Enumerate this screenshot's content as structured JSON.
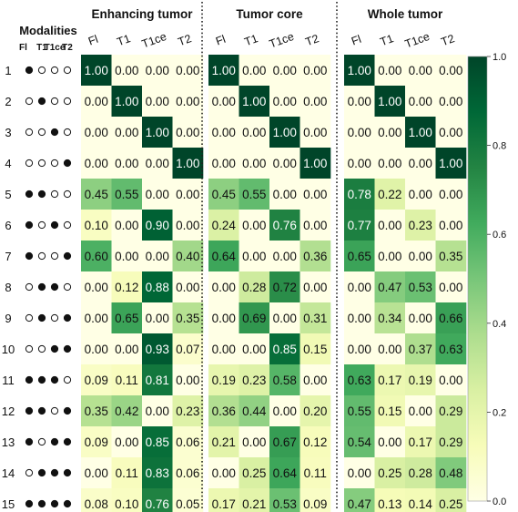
{
  "chart_data": {
    "type": "heatmap",
    "rows_label": "Modalities",
    "modality_labels": [
      "Fl",
      "T1",
      "T1ce",
      "T2"
    ],
    "row_ids": [
      "1",
      "2",
      "3",
      "4",
      "5",
      "6",
      "7",
      "8",
      "9",
      "10",
      "11",
      "12",
      "13",
      "14",
      "15"
    ],
    "modality_masks": [
      [
        1,
        0,
        0,
        0
      ],
      [
        0,
        1,
        0,
        0
      ],
      [
        0,
        0,
        1,
        0
      ],
      [
        0,
        0,
        0,
        1
      ],
      [
        1,
        1,
        0,
        0
      ],
      [
        1,
        0,
        1,
        0
      ],
      [
        1,
        0,
        0,
        1
      ],
      [
        0,
        1,
        1,
        0
      ],
      [
        0,
        1,
        0,
        1
      ],
      [
        0,
        0,
        1,
        1
      ],
      [
        1,
        1,
        1,
        0
      ],
      [
        1,
        1,
        0,
        1
      ],
      [
        1,
        0,
        1,
        1
      ],
      [
        0,
        1,
        1,
        1
      ],
      [
        1,
        1,
        1,
        1
      ]
    ],
    "panels": [
      {
        "title": "Enhancing tumor",
        "columns": [
          "Fl",
          "T1",
          "T1ce",
          "T2"
        ],
        "values": [
          [
            1.0,
            0.0,
            0.0,
            0.0
          ],
          [
            0.0,
            1.0,
            0.0,
            0.0
          ],
          [
            0.0,
            0.0,
            1.0,
            0.0
          ],
          [
            0.0,
            0.0,
            0.0,
            1.0
          ],
          [
            0.45,
            0.55,
            0.0,
            0.0
          ],
          [
            0.1,
            0.0,
            0.9,
            0.0
          ],
          [
            0.6,
            0.0,
            0.0,
            0.4
          ],
          [
            0.0,
            0.12,
            0.88,
            0.0
          ],
          [
            0.0,
            0.65,
            0.0,
            0.35
          ],
          [
            0.0,
            0.0,
            0.93,
            0.07
          ],
          [
            0.09,
            0.11,
            0.81,
            0.0
          ],
          [
            0.35,
            0.42,
            0.0,
            0.23
          ],
          [
            0.09,
            0.0,
            0.85,
            0.06
          ],
          [
            0.0,
            0.11,
            0.83,
            0.06
          ],
          [
            0.08,
            0.1,
            0.76,
            0.05
          ]
        ]
      },
      {
        "title": "Tumor core",
        "columns": [
          "Fl",
          "T1",
          "T1ce",
          "T2"
        ],
        "values": [
          [
            1.0,
            0.0,
            0.0,
            0.0
          ],
          [
            0.0,
            1.0,
            0.0,
            0.0
          ],
          [
            0.0,
            0.0,
            1.0,
            0.0
          ],
          [
            0.0,
            0.0,
            0.0,
            1.0
          ],
          [
            0.45,
            0.55,
            0.0,
            0.0
          ],
          [
            0.24,
            0.0,
            0.76,
            0.0
          ],
          [
            0.64,
            0.0,
            0.0,
            0.36
          ],
          [
            0.0,
            0.28,
            0.72,
            0.0
          ],
          [
            0.0,
            0.69,
            0.0,
            0.31
          ],
          [
            0.0,
            0.0,
            0.85,
            0.15
          ],
          [
            0.19,
            0.23,
            0.58,
            0.0
          ],
          [
            0.36,
            0.44,
            0.0,
            0.2
          ],
          [
            0.21,
            0.0,
            0.67,
            0.12
          ],
          [
            0.0,
            0.25,
            0.64,
            0.11
          ],
          [
            0.17,
            0.21,
            0.53,
            0.09
          ]
        ]
      },
      {
        "title": "Whole tumor",
        "columns": [
          "Fl",
          "T1",
          "T1ce",
          "T2"
        ],
        "values": [
          [
            1.0,
            0.0,
            0.0,
            0.0
          ],
          [
            0.0,
            1.0,
            0.0,
            0.0
          ],
          [
            0.0,
            0.0,
            1.0,
            0.0
          ],
          [
            0.0,
            0.0,
            0.0,
            1.0
          ],
          [
            0.78,
            0.22,
            0.0,
            0.0
          ],
          [
            0.77,
            0.0,
            0.23,
            0.0
          ],
          [
            0.65,
            0.0,
            0.0,
            0.35
          ],
          [
            0.0,
            0.47,
            0.53,
            0.0
          ],
          [
            0.0,
            0.34,
            0.0,
            0.66
          ],
          [
            0.0,
            0.0,
            0.37,
            0.63
          ],
          [
            0.63,
            0.17,
            0.19,
            0.0
          ],
          [
            0.55,
            0.15,
            0.0,
            0.29
          ],
          [
            0.54,
            0.0,
            0.17,
            0.29
          ],
          [
            0.0,
            0.25,
            0.28,
            0.48
          ],
          [
            0.47,
            0.13,
            0.14,
            0.25
          ]
        ]
      }
    ],
    "colorbar": {
      "range": [
        0.0,
        1.0
      ],
      "ticks": [
        "0.0",
        "0.2",
        "0.4",
        "0.6",
        "0.8",
        "1.0"
      ],
      "colors": [
        "#ffffe5",
        "#f7fcb9",
        "#d9f0a3",
        "#addd8e",
        "#78c679",
        "#41ab5d",
        "#238443",
        "#006837",
        "#004529"
      ]
    },
    "value_format": "2 decimals",
    "grid": false
  }
}
